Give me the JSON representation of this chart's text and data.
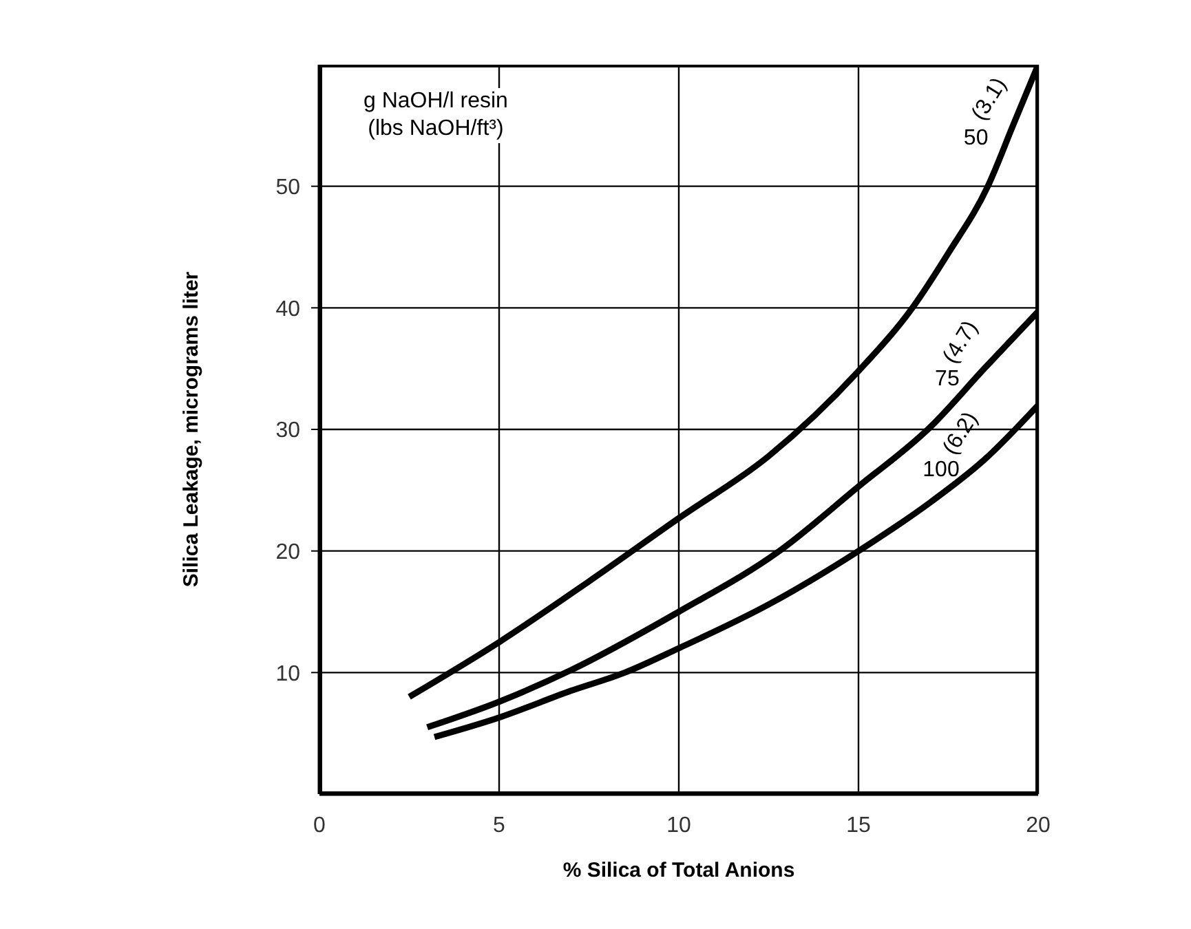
{
  "chart_data": {
    "type": "line",
    "xlabel": "% Silica of Total Anions",
    "ylabel": "Silica Leakage, micrograms liter",
    "legend_title": "g NaOH/l resin\n(lbs NaOH/ft³)",
    "xlim": [
      0,
      20
    ],
    "ylim": [
      0,
      60
    ],
    "xticks": [
      0,
      5,
      10,
      15,
      20
    ],
    "yticks": [
      10,
      20,
      30,
      40,
      50
    ],
    "grid": true,
    "legend": false,
    "marker": "none",
    "line_style": "solid",
    "series": [
      {
        "name": "50",
        "color": "#000000",
        "x": [
          2.5,
          5,
          7.5,
          10,
          12.5,
          15,
          16.5,
          17.5,
          18.6,
          19.3,
          20
        ],
        "values": [
          8,
          12.5,
          17.5,
          22.7,
          27.8,
          34.8,
          40,
          44.5,
          50,
          55,
          60
        ]
      },
      {
        "name": "75",
        "color": "#000000",
        "x": [
          3,
          5,
          7,
          10,
          12.8,
          15,
          17,
          18.5,
          20
        ],
        "values": [
          5.5,
          7.6,
          10.2,
          15,
          20,
          25.3,
          30.2,
          35,
          39.7
        ]
      },
      {
        "name": "100",
        "color": "#000000",
        "x": [
          3.2,
          5,
          7,
          8.5,
          10,
          12.5,
          15,
          17,
          18.5,
          20
        ],
        "values": [
          4.7,
          6.3,
          8.5,
          10,
          12,
          15.6,
          20,
          24,
          27.5,
          32
        ]
      }
    ],
    "annotations": [
      "(3.1)",
      "(4.7)",
      "(6.2)"
    ]
  }
}
